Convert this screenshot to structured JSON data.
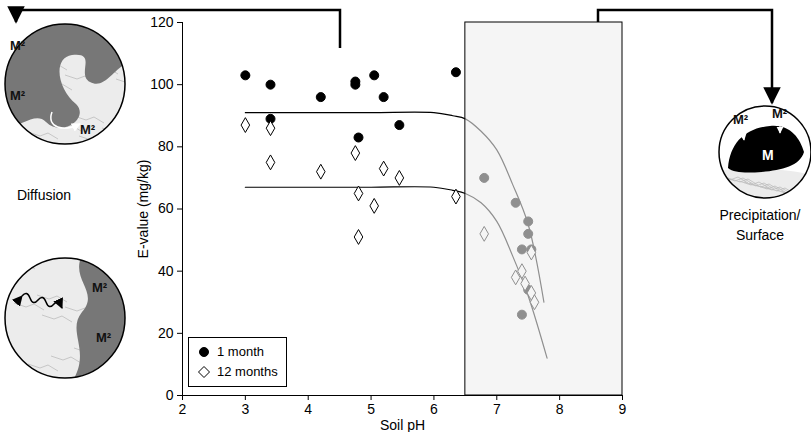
{
  "chart_data": {
    "type": "scatter",
    "xlabel": "Soil pH",
    "ylabel": "E-value (mg/kg)",
    "xlim": [
      2,
      9
    ],
    "ylim": [
      0,
      120
    ],
    "xticks": [
      2,
      3,
      4,
      5,
      6,
      7,
      8,
      9
    ],
    "yticks": [
      0,
      20,
      40,
      60,
      80,
      100,
      120
    ],
    "legend": "bottom-left",
    "series": [
      {
        "name": "1 month",
        "color": "#000000",
        "marker": "circle",
        "x": [
          3.0,
          3.4,
          3.4,
          4.2,
          4.75,
          4.75,
          4.8,
          5.05,
          5.2,
          5.45,
          6.35,
          6.8,
          7.3,
          7.5,
          7.5,
          7.55,
          7.4,
          7.5,
          7.4
        ],
        "values": [
          103,
          100,
          89,
          96,
          101,
          100,
          83,
          103,
          96,
          87,
          104,
          70,
          62,
          56,
          52,
          47,
          47,
          34,
          26
        ]
      },
      {
        "name": "12 months",
        "color": "#000000",
        "marker": "diamond-open",
        "x": [
          3.0,
          3.4,
          3.4,
          4.2,
          4.75,
          4.8,
          4.8,
          5.05,
          5.2,
          5.45,
          6.35,
          6.8,
          7.3,
          7.4,
          7.45,
          7.55,
          7.55,
          7.6
        ],
        "values": [
          87,
          86,
          75,
          72,
          78,
          65,
          51,
          61,
          73,
          70,
          64,
          52,
          38,
          40,
          36,
          46,
          33,
          30
        ]
      }
    ],
    "fitted_curves": [
      {
        "color": "#000000",
        "x": [
          3.0,
          4.0,
          5.0,
          6.0,
          6.3,
          6.5,
          6.75,
          7.0,
          7.25,
          7.5,
          7.75
        ],
        "values": [
          91,
          91,
          91,
          91,
          90,
          89,
          85,
          79,
          68,
          55,
          30
        ]
      },
      {
        "color": "#000000",
        "x": [
          3.0,
          4.0,
          5.0,
          6.0,
          6.3,
          6.5,
          6.75,
          7.0,
          7.25,
          7.5,
          7.8
        ],
        "values": [
          67,
          67,
          67,
          67,
          66,
          65,
          62,
          56,
          45,
          32,
          12
        ]
      }
    ],
    "shaded_x": [
      6.5,
      9
    ],
    "annotations": {
      "left_label": "Diffusion",
      "right_label": "Precipitation/ Surface",
      "diffusion_top_labels": [
        "M²",
        "M²",
        "M²"
      ],
      "diffusion_bottom_labels": [
        "M²",
        "M²"
      ],
      "precipitation_labels": [
        "M²",
        "M²",
        "M"
      ]
    }
  }
}
